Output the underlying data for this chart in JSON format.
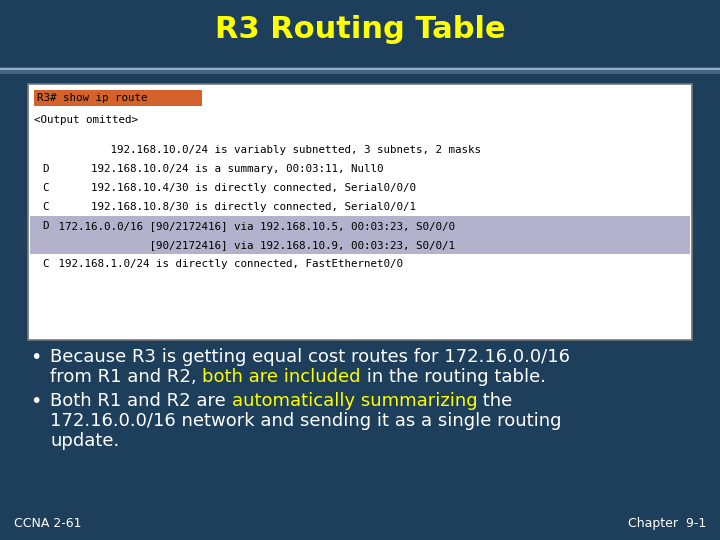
{
  "title": "R3 Routing Table",
  "title_color": "#FFFF00",
  "bg_color": "#1e3f5c",
  "box_bg": "#ffffff",
  "cmd_highlight_bg": "#d4622a",
  "cmd_text": "R3# show ip route",
  "output_omitted": "<Output omitted>",
  "code_lines": [
    {
      "label": "",
      "text": "         192.168.10.0/24 is variably subnetted, 3 subnets, 2 masks",
      "highlight": false
    },
    {
      "label": "D",
      "text": "      192.168.10.0/24 is a summary, 00:03:11, Null0",
      "highlight": false
    },
    {
      "label": "C",
      "text": "      192.168.10.4/30 is directly connected, Serial0/0/0",
      "highlight": false
    },
    {
      "label": "C",
      "text": "      192.168.10.8/30 is directly connected, Serial0/0/1",
      "highlight": false
    },
    {
      "label": "D",
      "text": " 172.16.0.0/16 [90/2172416] via 192.168.10.5, 00:03:23, S0/0/0",
      "highlight": true
    },
    {
      "label": "",
      "text": "               [90/2172416] via 192.168.10.9, 00:03:23, S0/0/1",
      "highlight": true
    },
    {
      "label": "C",
      "text": " 192.168.1.0/24 is directly connected, FastEthernet0/0",
      "highlight": false
    }
  ],
  "highlight_bg": "#9999bb",
  "bullet_color": "#ffffff",
  "highlight_text_color": "#FFFF00",
  "footer_left": "CCNA 2-61",
  "footer_right": "Chapter  9-1",
  "footer_color": "#ffffff"
}
